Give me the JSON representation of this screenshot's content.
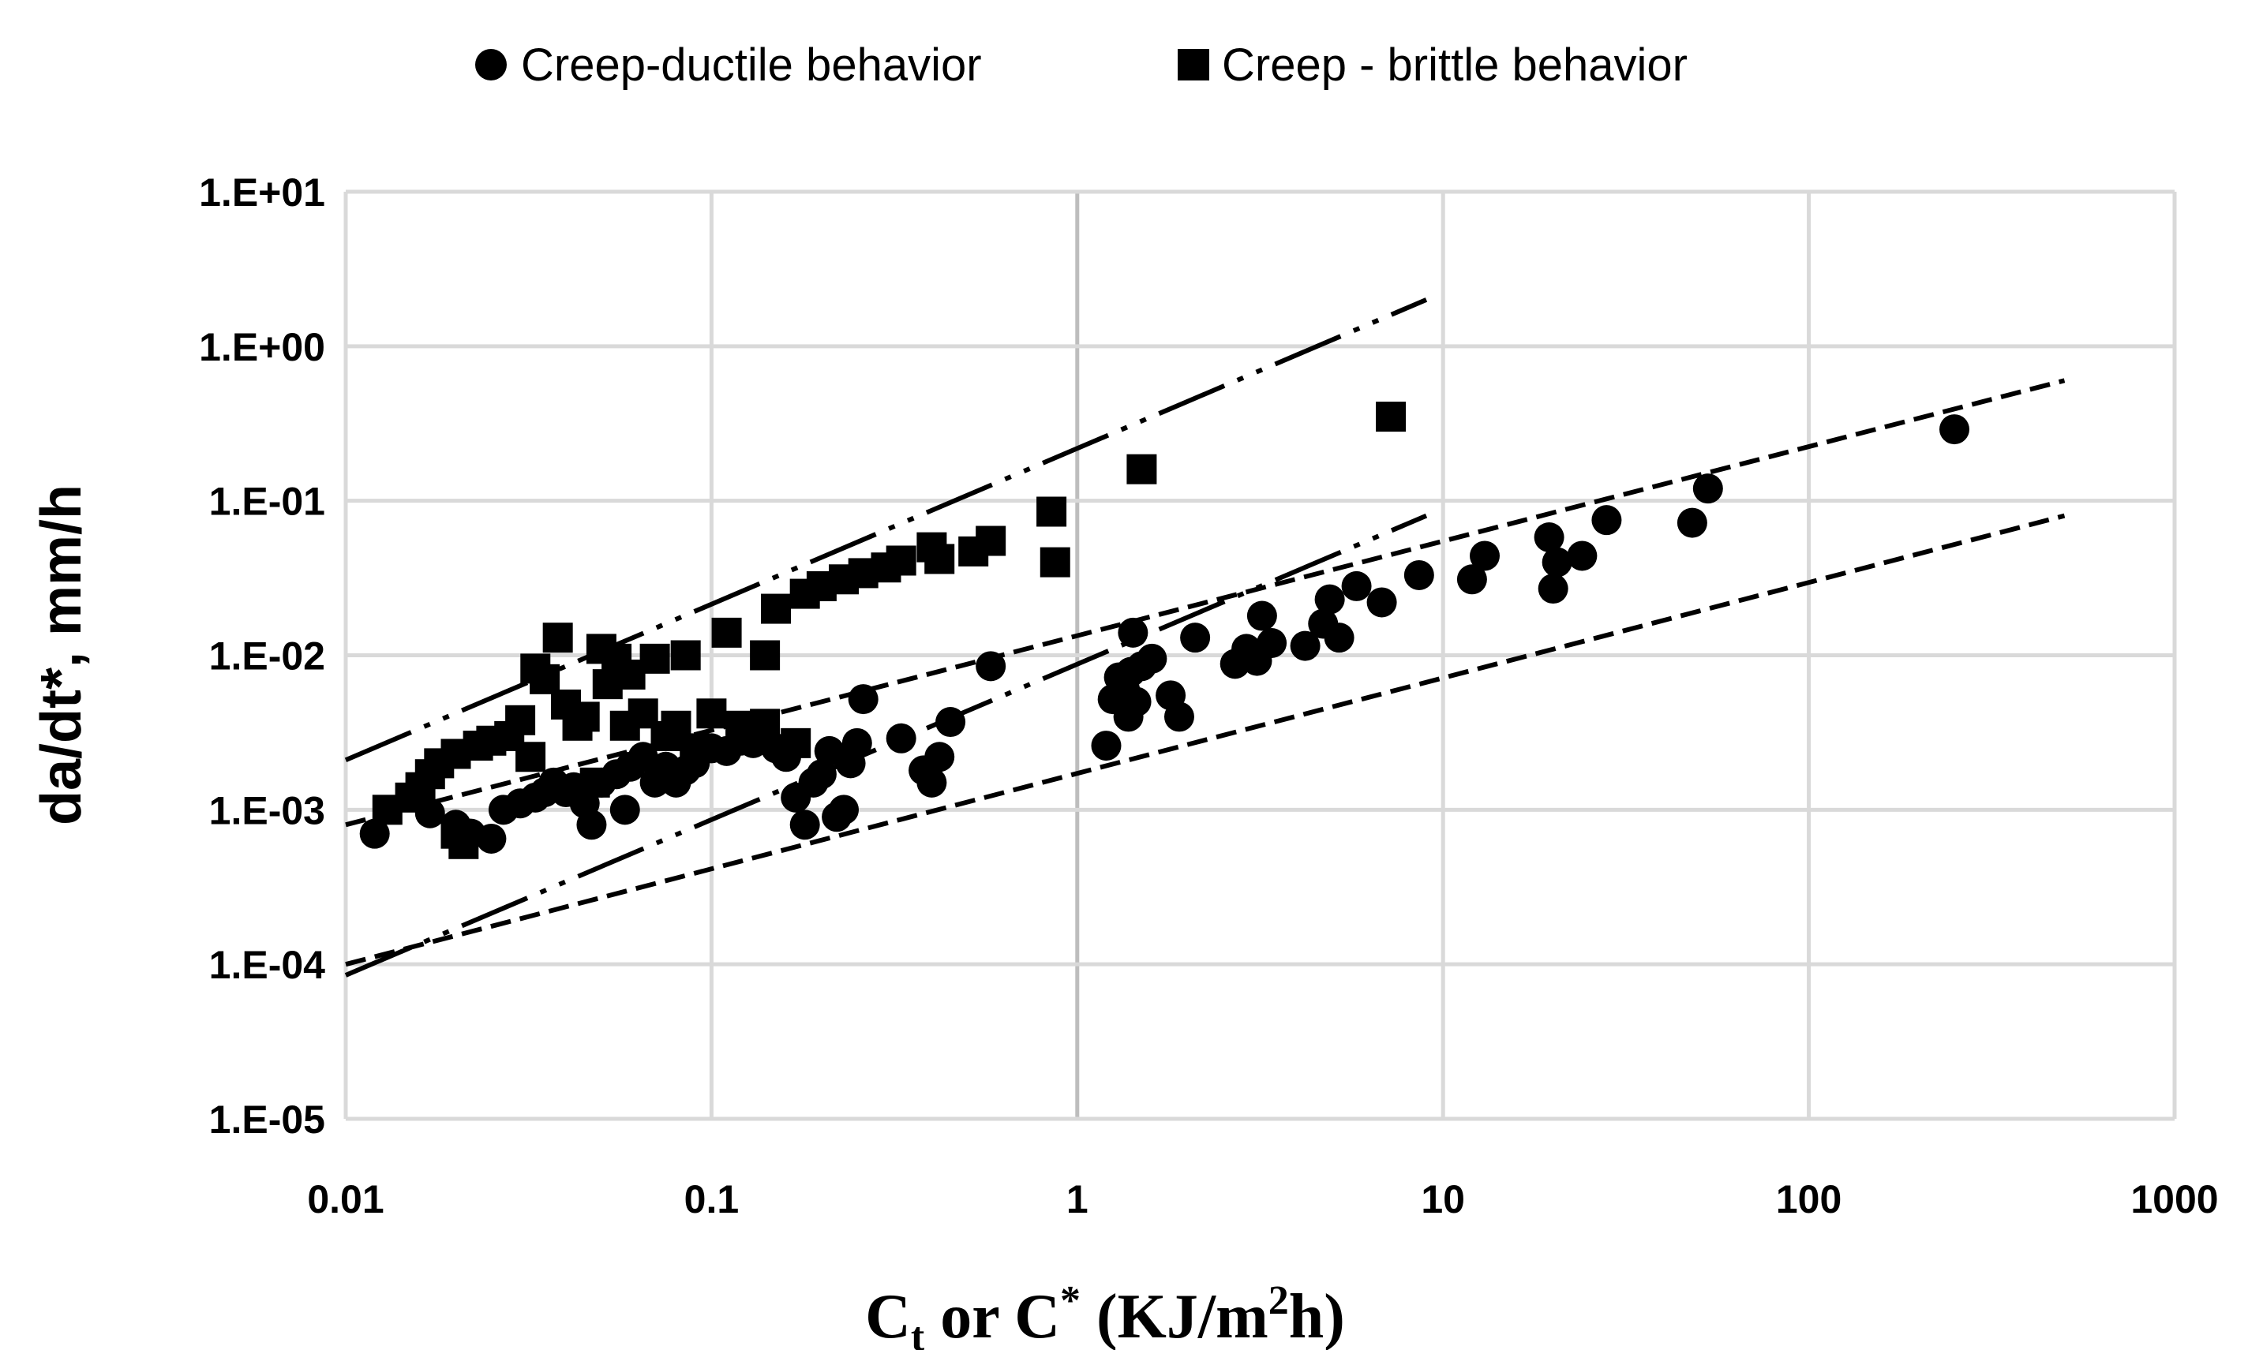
{
  "chart_data": {
    "type": "scatter",
    "xscale": "log",
    "yscale": "log",
    "xlim": [
      0.01,
      1000
    ],
    "ylim": [
      1e-05,
      10
    ],
    "grid": true,
    "legend_position": "top",
    "x_tick_labels": [
      "0.01",
      "0.1",
      "1",
      "10",
      "100",
      "1000"
    ],
    "y_tick_labels": [
      "1.E-05",
      "1.E-04",
      "1.E-03",
      "1.E-02",
      "1.E-01",
      "1.E+00",
      "1.E+01"
    ],
    "xlabel": {
      "main": "C",
      "sub": "t",
      "mid": " or C",
      "sup": "*",
      "tail": " (KJ/m",
      "sup2": "2",
      "end": "h)"
    },
    "ylabel": "da/dt*, mm/h",
    "series": [
      {
        "name": "Creep-ductile behavior",
        "marker": "circle",
        "color": "#000000",
        "points": [
          [
            0.012,
            0.0007
          ],
          [
            0.017,
            0.00095
          ],
          [
            0.02,
            0.0008
          ],
          [
            0.022,
            0.0007
          ],
          [
            0.025,
            0.00065
          ],
          [
            0.027,
            0.001
          ],
          [
            0.03,
            0.0011
          ],
          [
            0.033,
            0.0012
          ],
          [
            0.035,
            0.0013
          ],
          [
            0.037,
            0.0015
          ],
          [
            0.04,
            0.0013
          ],
          [
            0.042,
            0.0014
          ],
          [
            0.045,
            0.0011
          ],
          [
            0.047,
            0.0008
          ],
          [
            0.05,
            0.0015
          ],
          [
            0.055,
            0.0017
          ],
          [
            0.058,
            0.001
          ],
          [
            0.06,
            0.0019
          ],
          [
            0.065,
            0.0022
          ],
          [
            0.07,
            0.0015
          ],
          [
            0.075,
            0.0019
          ],
          [
            0.08,
            0.0015
          ],
          [
            0.085,
            0.0018
          ],
          [
            0.09,
            0.002
          ],
          [
            0.1,
            0.0025
          ],
          [
            0.11,
            0.0024
          ],
          [
            0.12,
            0.0028
          ],
          [
            0.13,
            0.0027
          ],
          [
            0.15,
            0.0025
          ],
          [
            0.16,
            0.0022
          ],
          [
            0.17,
            0.0012
          ],
          [
            0.18,
            0.0008
          ],
          [
            0.19,
            0.0015
          ],
          [
            0.2,
            0.0017
          ],
          [
            0.21,
            0.0024
          ],
          [
            0.22,
            0.0009
          ],
          [
            0.23,
            0.001
          ],
          [
            0.24,
            0.002
          ],
          [
            0.25,
            0.0027
          ],
          [
            0.26,
            0.0052
          ],
          [
            0.33,
            0.0029
          ],
          [
            0.38,
            0.0018
          ],
          [
            0.4,
            0.0015
          ],
          [
            0.42,
            0.0022
          ],
          [
            0.45,
            0.0037
          ],
          [
            0.58,
            0.0085
          ],
          [
            1.2,
            0.0026
          ],
          [
            1.25,
            0.0052
          ],
          [
            1.3,
            0.0072
          ],
          [
            1.35,
            0.006
          ],
          [
            1.38,
            0.004
          ],
          [
            1.4,
            0.0078
          ],
          [
            1.45,
            0.005
          ],
          [
            1.42,
            0.014
          ],
          [
            1.5,
            0.0085
          ],
          [
            1.6,
            0.0095
          ],
          [
            1.8,
            0.0055
          ],
          [
            1.9,
            0.004
          ],
          [
            2.1,
            0.013
          ],
          [
            2.7,
            0.0088
          ],
          [
            2.9,
            0.011
          ],
          [
            3.1,
            0.0092
          ],
          [
            3.2,
            0.018
          ],
          [
            3.4,
            0.012
          ],
          [
            4.2,
            0.0115
          ],
          [
            4.7,
            0.016
          ],
          [
            4.9,
            0.023
          ],
          [
            5.2,
            0.013
          ],
          [
            5.8,
            0.028
          ],
          [
            6.8,
            0.022
          ],
          [
            8.6,
            0.033
          ],
          [
            12,
            0.031
          ],
          [
            13,
            0.044
          ],
          [
            19.5,
            0.058
          ],
          [
            20,
            0.027
          ],
          [
            20.5,
            0.04
          ],
          [
            24,
            0.044
          ],
          [
            28,
            0.075
          ],
          [
            48,
            0.072
          ],
          [
            53,
            0.12
          ],
          [
            250,
            0.29
          ]
        ]
      },
      {
        "name": "Creep - brittle behavior",
        "marker": "square",
        "color": "#000000",
        "points": [
          [
            0.013,
            0.001
          ],
          [
            0.015,
            0.0012
          ],
          [
            0.016,
            0.0014
          ],
          [
            0.017,
            0.0017
          ],
          [
            0.018,
            0.002
          ],
          [
            0.02,
            0.0023
          ],
          [
            0.02,
            0.0007
          ],
          [
            0.021,
            0.0006
          ],
          [
            0.023,
            0.0026
          ],
          [
            0.025,
            0.0028
          ],
          [
            0.028,
            0.003
          ],
          [
            0.03,
            0.0038
          ],
          [
            0.032,
            0.0022
          ],
          [
            0.033,
            0.0082
          ],
          [
            0.035,
            0.007
          ],
          [
            0.038,
            0.013
          ],
          [
            0.04,
            0.0048
          ],
          [
            0.043,
            0.0035
          ],
          [
            0.045,
            0.004
          ],
          [
            0.048,
            0.0015
          ],
          [
            0.05,
            0.011
          ],
          [
            0.052,
            0.0065
          ],
          [
            0.055,
            0.0095
          ],
          [
            0.058,
            0.0035
          ],
          [
            0.06,
            0.0075
          ],
          [
            0.065,
            0.0042
          ],
          [
            0.07,
            0.0095
          ],
          [
            0.075,
            0.003
          ],
          [
            0.08,
            0.0035
          ],
          [
            0.085,
            0.01
          ],
          [
            0.09,
            0.0025
          ],
          [
            0.1,
            0.0042
          ],
          [
            0.11,
            0.014
          ],
          [
            0.12,
            0.0035
          ],
          [
            0.14,
            0.0036
          ],
          [
            0.14,
            0.01
          ],
          [
            0.15,
            0.02
          ],
          [
            0.17,
            0.0027
          ],
          [
            0.18,
            0.025
          ],
          [
            0.2,
            0.028
          ],
          [
            0.23,
            0.031
          ],
          [
            0.26,
            0.034
          ],
          [
            0.3,
            0.037
          ],
          [
            0.33,
            0.041
          ],
          [
            0.4,
            0.05
          ],
          [
            0.42,
            0.042
          ],
          [
            0.52,
            0.047
          ],
          [
            0.58,
            0.055
          ],
          [
            0.85,
            0.085
          ],
          [
            0.87,
            0.04
          ],
          [
            1.5,
            0.16
          ],
          [
            7.2,
            0.35
          ]
        ]
      }
    ],
    "trend_lines": [
      {
        "style": "dash-dot-dot",
        "from": [
          0.01,
          0.0021
        ],
        "to": [
          9,
          2.0
        ]
      },
      {
        "style": "dash-dot-dot",
        "from": [
          0.01,
          8.5e-05
        ],
        "to": [
          9,
          0.08
        ]
      },
      {
        "style": "dashed",
        "from": [
          0.01,
          0.0008
        ],
        "to": [
          500,
          0.6
        ]
      },
      {
        "style": "dashed",
        "from": [
          0.01,
          0.0001
        ],
        "to": [
          500,
          0.08
        ]
      }
    ]
  }
}
